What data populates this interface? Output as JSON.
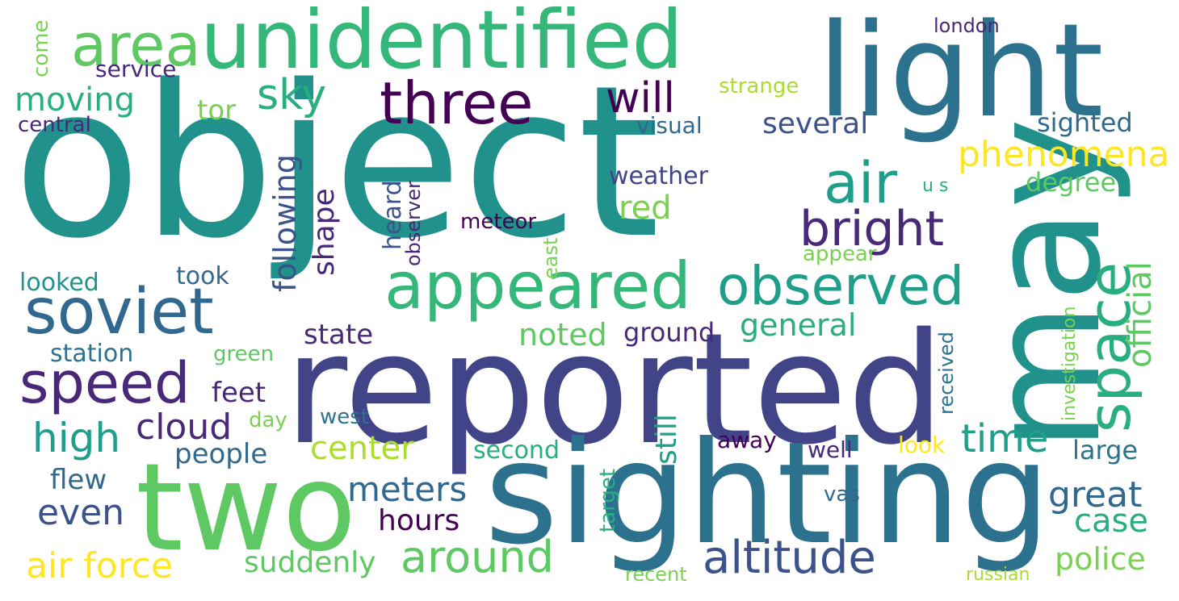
{
  "words": {
    "object": "object",
    "reported": "reported",
    "sighting": "sighting",
    "may": "may",
    "light": "light",
    "two": "two",
    "unidentified": "unidentified",
    "area": "area",
    "three": "three",
    "appeared": "appeared",
    "soviet": "soviet",
    "speed": "speed",
    "observed": "observed",
    "air": "air",
    "bright": "bright",
    "space": "space",
    "altitude": "altitude",
    "around": "around",
    "will": "will",
    "sky": "sky",
    "moving": "moving",
    "tor": "tor",
    "phenomena": "phenomena",
    "official": "official",
    "time": "time",
    "great": "great",
    "case": "case",
    "police": "police",
    "high": "high",
    "cloud": "cloud",
    "center": "center",
    "meters": "meters",
    "hours": "hours",
    "even": "even",
    "air_force": "air force",
    "suddenly": "suddenly",
    "several": "several",
    "general": "general",
    "noted": "noted",
    "ground": "ground",
    "state": "state",
    "station": "station",
    "people": "people",
    "feet": "feet",
    "flew": "flew",
    "red": "red",
    "degree": "degree",
    "large": "large",
    "sighted": "sighted",
    "weather": "weather",
    "following": "following",
    "shape": "shape",
    "still": "still",
    "service": "service",
    "central": "central",
    "london": "london",
    "strange": "strange",
    "visual": "visual",
    "come": "come",
    "heard": "heard",
    "observer": "observer",
    "meteor": "meteor",
    "east": "east",
    "appear": "appear",
    "u_s": "u s",
    "looked": "looked",
    "took": "took",
    "green": "green",
    "day": "day",
    "west": "west",
    "second": "second",
    "away": "away",
    "well": "well",
    "look": "look",
    "target": "target",
    "vas": "vas",
    "recent": "recent",
    "russian": "russian",
    "received": "received",
    "investigation": "investigation"
  },
  "colors": {
    "teal": "#21918c",
    "blue": "#3b528b",
    "indigo": "#414487",
    "deep_purple": "#440154",
    "purple": "#482878",
    "slate": "#31688e",
    "steel": "#2c728e",
    "green": "#35b779",
    "light_green": "#5ec962",
    "lime": "#7ad151",
    "yellow_green": "#addc30",
    "yellow": "#fde725",
    "aqua": "#28ae80",
    "sea": "#1f9e89"
  }
}
